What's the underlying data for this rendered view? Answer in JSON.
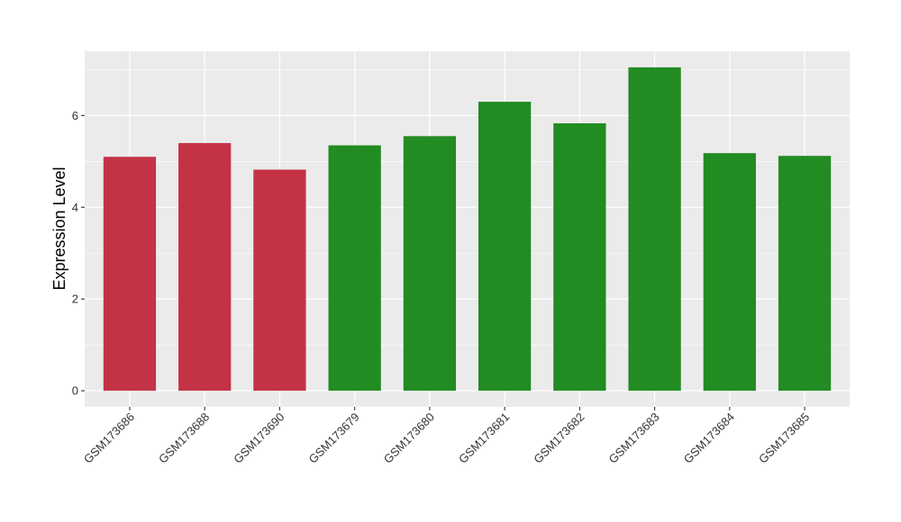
{
  "chart_data": {
    "type": "bar",
    "title": "",
    "xlabel": "",
    "ylabel": "Expression Level",
    "categories": [
      "GSM173686",
      "GSM173688",
      "GSM173690",
      "GSM173679",
      "GSM173680",
      "GSM173681",
      "GSM173682",
      "GSM173683",
      "GSM173684",
      "GSM173685"
    ],
    "values": [
      5.1,
      5.4,
      4.82,
      5.35,
      5.55,
      6.3,
      5.83,
      7.05,
      5.18,
      5.12
    ],
    "bar_colors": [
      "#C43246",
      "#C43246",
      "#C43246",
      "#228B22",
      "#228B22",
      "#228B22",
      "#228B22",
      "#228B22",
      "#228B22",
      "#228B22"
    ],
    "y_ticks": [
      0,
      2,
      4,
      6
    ],
    "y_tick_labels": [
      "0",
      "2",
      "4",
      "6"
    ],
    "ylim": [
      -0.35,
      7.4
    ],
    "grid": true,
    "panel_background": "#EBEBEB",
    "grid_color": "#FFFFFF",
    "legend": "none"
  }
}
